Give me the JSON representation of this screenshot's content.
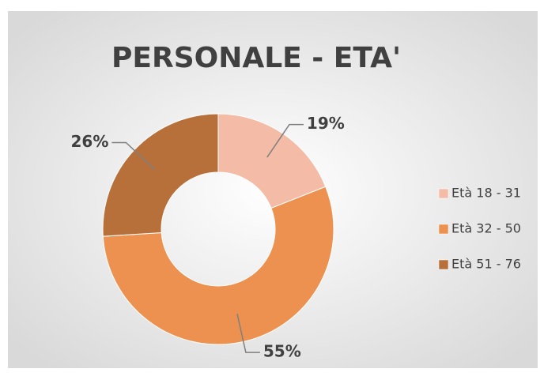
{
  "chart_data": {
    "type": "donut",
    "title": "PERSONALE - ETA'",
    "categories": [
      "Età 18 - 31",
      "Età 32 - 50",
      "Età 51 - 76"
    ],
    "values": [
      19,
      55,
      26
    ],
    "value_labels": [
      "19%",
      "55%",
      "26%"
    ],
    "colors": [
      "#f4bba6",
      "#ec914f",
      "#b8703b"
    ],
    "legend": "right"
  }
}
